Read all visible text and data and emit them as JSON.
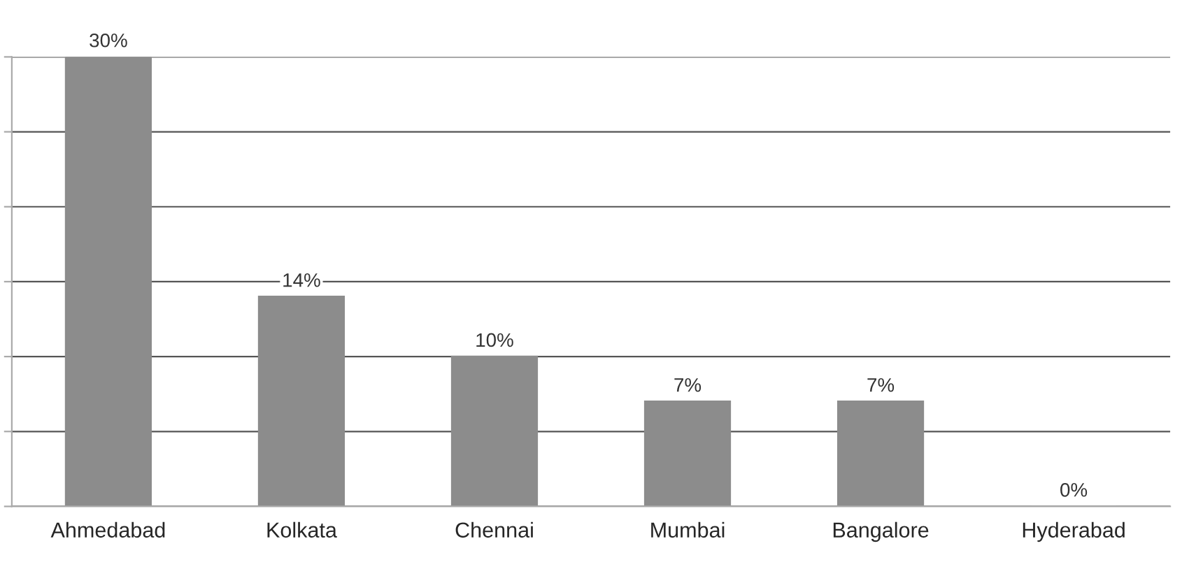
{
  "chart_data": {
    "type": "bar",
    "categories": [
      "Ahmedabad",
      "Kolkata",
      "Chennai",
      "Mumbai",
      "Bangalore",
      "Hyderabad"
    ],
    "values": [
      30,
      14,
      10,
      7,
      7,
      0
    ],
    "value_labels": [
      "30%",
      "14%",
      "10%",
      "7%",
      "7%",
      "0%"
    ],
    "color": "#8c8c8c",
    "ylim": [
      0,
      30
    ],
    "yticks": [
      {
        "value": 0,
        "label": null
      },
      {
        "value": 5,
        "label": null
      },
      {
        "value": 10,
        "label": null
      },
      {
        "value": 15,
        "label": null
      },
      {
        "value": 20,
        "label": null
      },
      {
        "value": 25,
        "label": null
      },
      {
        "value": 30,
        "label": null
      }
    ],
    "grid": "y",
    "tick_labels": "x",
    "legend": false
  }
}
